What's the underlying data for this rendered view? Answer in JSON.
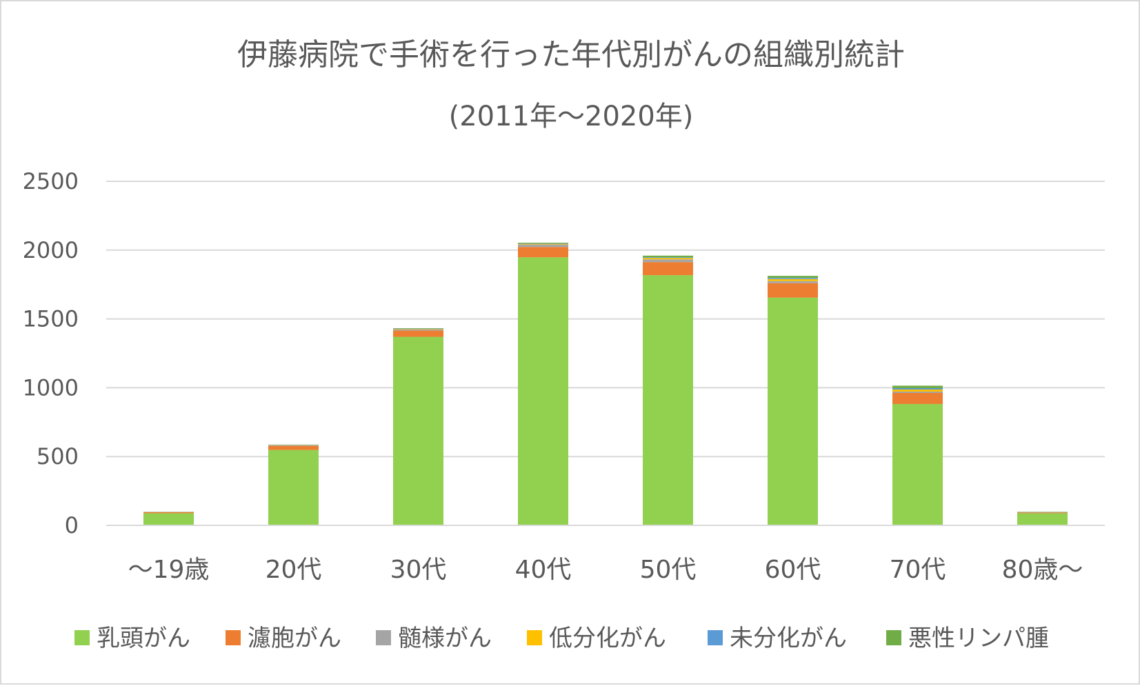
{
  "chart_data": {
    "type": "bar",
    "stacked": true,
    "title": "伊藤病院で手術を行った年代別がんの組織別統計",
    "subtitle": "(2011年～2020年)",
    "categories": [
      "～19歳",
      "20代",
      "30代",
      "40代",
      "50代",
      "60代",
      "70代",
      "80歳～"
    ],
    "ylim": [
      0,
      2500
    ],
    "yticks": [
      "0",
      "500",
      "1000",
      "1500",
      "2000",
      "2500"
    ],
    "ytick_values": [
      0,
      500,
      1000,
      1500,
      2000,
      2500
    ],
    "grid": true,
    "legend_position": "bottom",
    "series": [
      {
        "name": "乳頭がん",
        "color": "#92d050",
        "values": [
          88,
          548,
          1370,
          1948,
          1818,
          1655,
          882,
          88
        ]
      },
      {
        "name": "濾胞がん",
        "color": "#ed7d31",
        "values": [
          8,
          30,
          45,
          75,
          95,
          105,
          80,
          5
        ]
      },
      {
        "name": "髄様がん",
        "color": "#a5a5a5",
        "values": [
          2,
          5,
          10,
          18,
          20,
          15,
          10,
          2
        ]
      },
      {
        "name": "低分化がん",
        "color": "#ffc000",
        "values": [
          0,
          1,
          3,
          5,
          10,
          15,
          15,
          1
        ]
      },
      {
        "name": "未分化がん",
        "color": "#5b9bd5",
        "values": [
          0,
          1,
          2,
          3,
          5,
          8,
          10,
          1
        ]
      },
      {
        "name": "悪性リンパ腫",
        "color": "#70ad47",
        "values": [
          1,
          2,
          3,
          5,
          12,
          15,
          18,
          2
        ]
      }
    ]
  }
}
